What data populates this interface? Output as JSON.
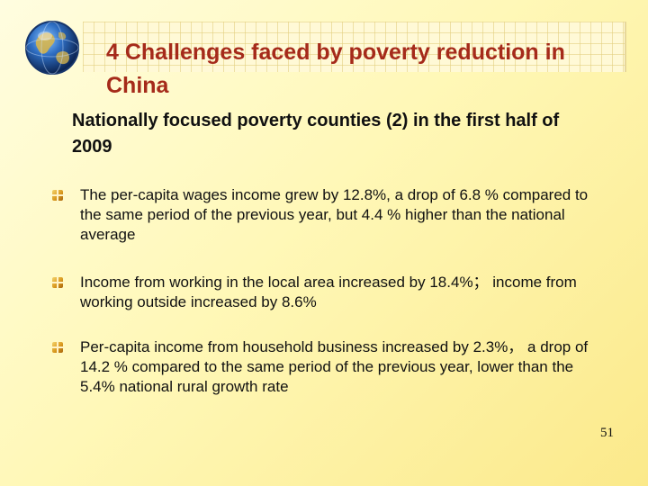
{
  "slide": {
    "title": "4 Challenges faced by poverty reduction in China",
    "subtitle": "Nationally focused poverty counties (2) in the first half of 2009",
    "bullets": [
      {
        "icon": "bullet-square-icon",
        "text": "The per-capita wages income grew by 12.8%, a drop of 6.8 % compared to the same period of the previous year, but 4.4 % higher than the national average"
      },
      {
        "icon": "bullet-square-icon",
        "text": "Income from working in the local area increased by 18.4%； income from working outside increased by 8.6%"
      },
      {
        "icon": "bullet-square-icon",
        "text": "Per-capita income from household business increased by 2.3%， a drop of 14.2 % compared to the same period of the previous year, lower than the 5.4% national rural growth rate"
      }
    ],
    "page_number": "51"
  },
  "decor": {
    "logo_icon": "globe-icon",
    "title_color": "#a52a1a",
    "bullet_color": "#d99a1f"
  }
}
